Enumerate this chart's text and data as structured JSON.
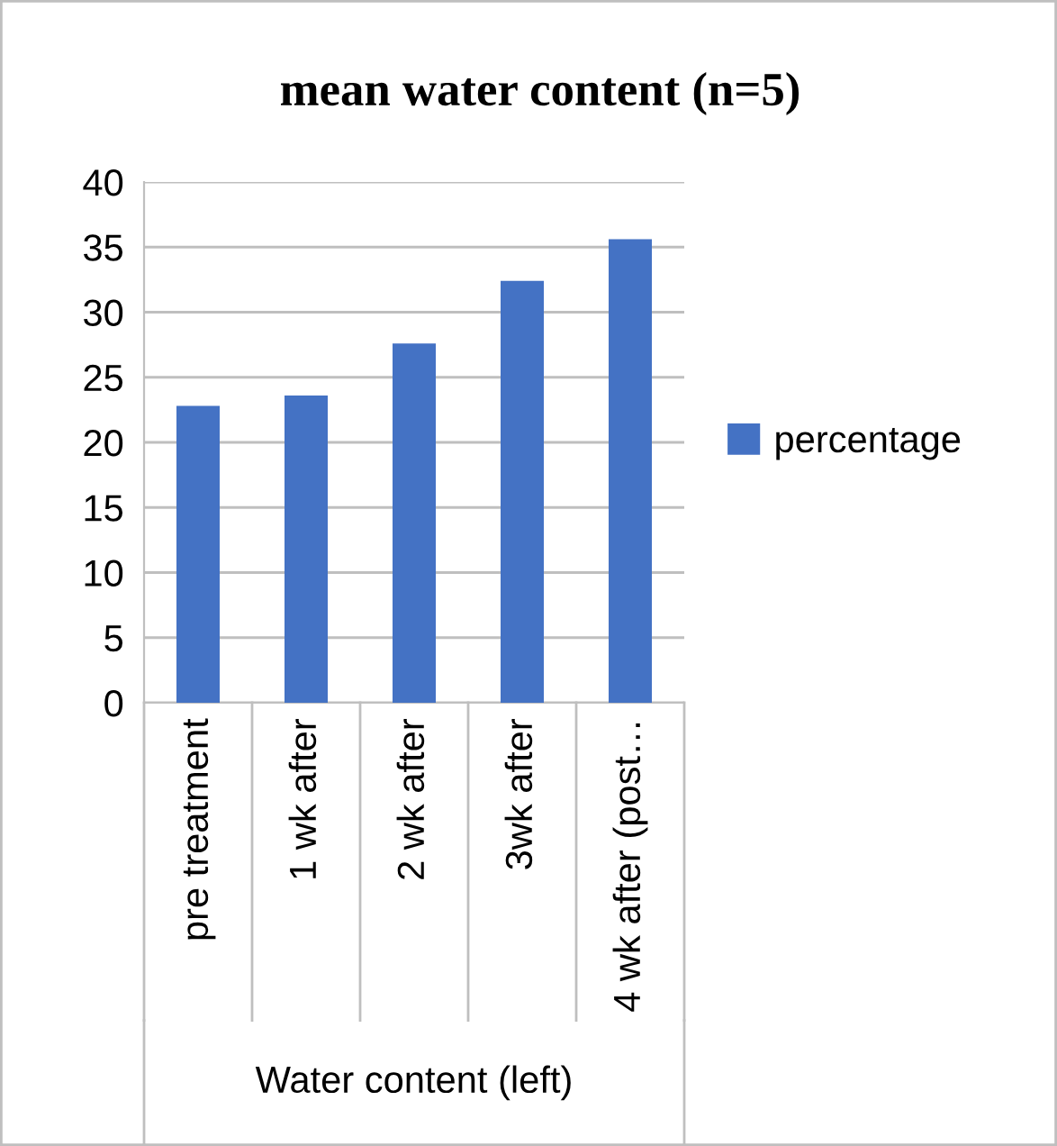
{
  "chart_data": {
    "type": "bar",
    "title": "mean water content (n=5)",
    "xlabel": "Water content (left)",
    "categories": [
      "pre treatment",
      "1 wk after",
      "2 wk after",
      "3wk after",
      "4 wk after (post…"
    ],
    "series": [
      {
        "name": "percentage",
        "color": "#4472c4",
        "values": [
          22.8,
          23.6,
          27.6,
          32.4,
          35.6
        ]
      }
    ],
    "ylim": [
      0,
      40
    ],
    "yticks": [
      0,
      5,
      10,
      15,
      20,
      25,
      30,
      35,
      40
    ],
    "grid": "y",
    "legend": "right"
  }
}
